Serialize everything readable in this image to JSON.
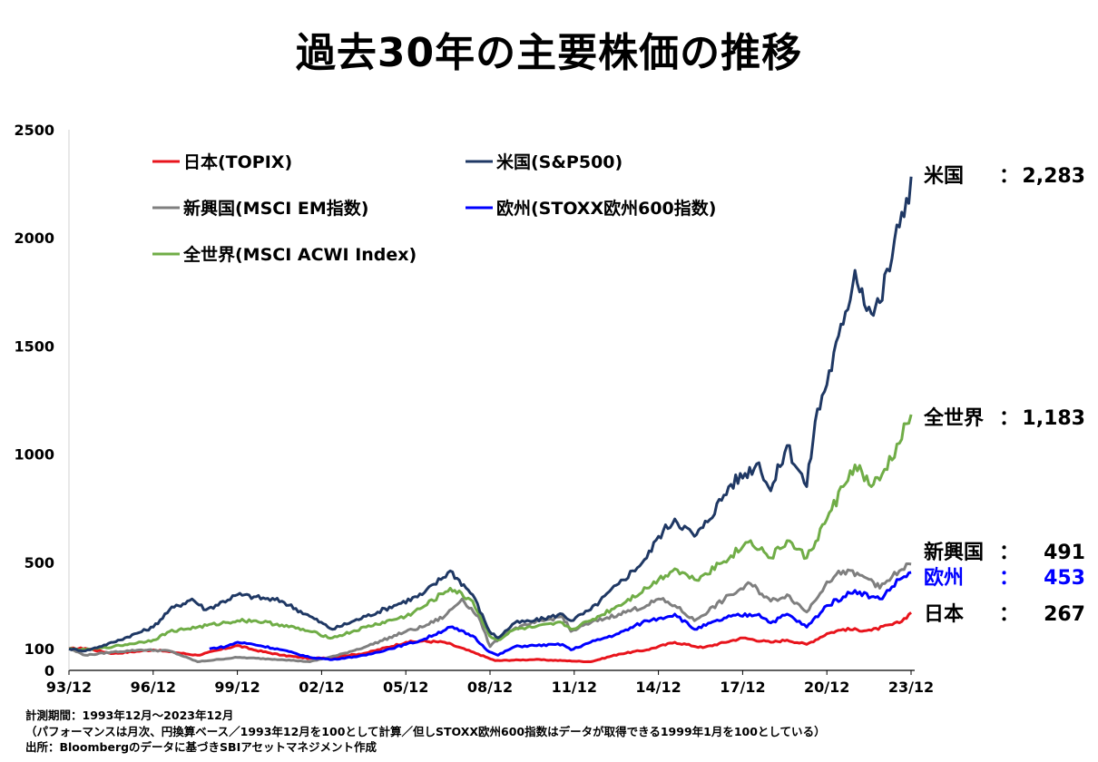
{
  "title": "過去30年の主要株価の推移",
  "chart_data": {
    "type": "line",
    "title": "過去30年の主要株価の推移",
    "x_range": [
      "1993-12",
      "2023-12"
    ],
    "ylim": [
      0,
      2500
    ],
    "y_ticks": [
      "0",
      "100",
      "500",
      "1000",
      "1500",
      "2000",
      "2500"
    ],
    "x_ticks": [
      "93/12",
      "96/12",
      "99/12",
      "02/12",
      "05/12",
      "08/12",
      "11/12",
      "14/12",
      "17/12",
      "20/12",
      "23/12"
    ],
    "legend_position": "top-left",
    "grid": false,
    "series": [
      {
        "name": "日本(TOPIX)",
        "color": "#e8141c",
        "end_label": "日本",
        "end_value": "267",
        "label_color": "#000000",
        "points": [
          [
            1993.92,
            100
          ],
          [
            1994.5,
            102
          ],
          [
            1995.5,
            78
          ],
          [
            1996.5,
            90
          ],
          [
            1996.92,
            95
          ],
          [
            1997.5,
            86
          ],
          [
            1998.5,
            70
          ],
          [
            1999.92,
            115
          ],
          [
            2000.5,
            95
          ],
          [
            2001.5,
            70
          ],
          [
            2002.5,
            55
          ],
          [
            2003.3,
            60
          ],
          [
            2004.5,
            80
          ],
          [
            2005.92,
            130
          ],
          [
            2006.5,
            135
          ],
          [
            2007.3,
            130
          ],
          [
            2008.5,
            75
          ],
          [
            2009.1,
            45
          ],
          [
            2010.5,
            50
          ],
          [
            2011.5,
            45
          ],
          [
            2012.5,
            40
          ],
          [
            2013.5,
            75
          ],
          [
            2014.5,
            95
          ],
          [
            2015.5,
            130
          ],
          [
            2016.5,
            105
          ],
          [
            2017.92,
            150
          ],
          [
            2018.92,
            130
          ],
          [
            2019.5,
            140
          ],
          [
            2020.2,
            120
          ],
          [
            2020.92,
            170
          ],
          [
            2021.5,
            190
          ],
          [
            2022.5,
            185
          ],
          [
            2023.5,
            220
          ],
          [
            2023.92,
            267
          ]
        ]
      },
      {
        "name": "米国(S&P500)",
        "color": "#1f3864",
        "end_label": "米国",
        "end_value": "2,283",
        "label_color": "#000000",
        "points": [
          [
            1993.92,
            100
          ],
          [
            1994.5,
            90
          ],
          [
            1995.5,
            130
          ],
          [
            1996.92,
            200
          ],
          [
            1997.5,
            280
          ],
          [
            1998.3,
            330
          ],
          [
            1998.8,
            280
          ],
          [
            1999.92,
            350
          ],
          [
            2000.5,
            340
          ],
          [
            2001.5,
            320
          ],
          [
            2002.5,
            250
          ],
          [
            2003.3,
            190
          ],
          [
            2004.5,
            250
          ],
          [
            2005.5,
            300
          ],
          [
            2006.5,
            350
          ],
          [
            2007.5,
            460
          ],
          [
            2008.3,
            350
          ],
          [
            2008.9,
            180
          ],
          [
            2009.2,
            150
          ],
          [
            2009.8,
            220
          ],
          [
            2010.5,
            230
          ],
          [
            2011.5,
            260
          ],
          [
            2011.8,
            230
          ],
          [
            2012.5,
            280
          ],
          [
            2013.5,
            400
          ],
          [
            2014.5,
            520
          ],
          [
            2014.92,
            620
          ],
          [
            2015.5,
            700
          ],
          [
            2016.2,
            620
          ],
          [
            2016.5,
            660
          ],
          [
            2017.5,
            860
          ],
          [
            2018.5,
            960
          ],
          [
            2018.92,
            830
          ],
          [
            2019.5,
            1040
          ],
          [
            2020.2,
            850
          ],
          [
            2020.5,
            1150
          ],
          [
            2021.5,
            1600
          ],
          [
            2021.92,
            1850
          ],
          [
            2022.5,
            1650
          ],
          [
            2022.8,
            1700
          ],
          [
            2023.5,
            2050
          ],
          [
            2023.92,
            2283
          ]
        ]
      },
      {
        "name": "新興国(MSCI EM指数)",
        "color": "#7f7f7f",
        "end_label": "新興国",
        "end_value": "491",
        "label_color": "#000000",
        "points": [
          [
            1993.92,
            100
          ],
          [
            1994.5,
            70
          ],
          [
            1995.5,
            85
          ],
          [
            1996.5,
            95
          ],
          [
            1997.5,
            90
          ],
          [
            1998.5,
            40
          ],
          [
            1999.92,
            60
          ],
          [
            2001.5,
            50
          ],
          [
            2002.5,
            40
          ],
          [
            2003.5,
            70
          ],
          [
            2004.5,
            110
          ],
          [
            2005.92,
            180
          ],
          [
            2006.5,
            200
          ],
          [
            2007.3,
            250
          ],
          [
            2007.92,
            330
          ],
          [
            2008.5,
            250
          ],
          [
            2008.92,
            110
          ],
          [
            2009.5,
            180
          ],
          [
            2010.5,
            220
          ],
          [
            2011.5,
            250
          ],
          [
            2011.8,
            180
          ],
          [
            2012.5,
            220
          ],
          [
            2013.5,
            260
          ],
          [
            2014.5,
            300
          ],
          [
            2014.92,
            330
          ],
          [
            2015.5,
            300
          ],
          [
            2016.2,
            230
          ],
          [
            2017.5,
            350
          ],
          [
            2018.2,
            400
          ],
          [
            2018.92,
            320
          ],
          [
            2019.5,
            350
          ],
          [
            2020.2,
            270
          ],
          [
            2020.92,
            410
          ],
          [
            2021.5,
            460
          ],
          [
            2022.5,
            420
          ],
          [
            2022.8,
            380
          ],
          [
            2023.5,
            460
          ],
          [
            2023.92,
            491
          ]
        ]
      },
      {
        "name": "欧州(STOXX欧州600指数)",
        "color": "#0000ff",
        "end_label": "欧州",
        "end_value": "453",
        "label_color": "#0000ff",
        "points": [
          [
            1998.92,
            100
          ],
          [
            1999.5,
            110
          ],
          [
            1999.92,
            130
          ],
          [
            2000.5,
            120
          ],
          [
            2001.5,
            95
          ],
          [
            2002.5,
            60
          ],
          [
            2003.3,
            50
          ],
          [
            2004.5,
            70
          ],
          [
            2005.92,
            120
          ],
          [
            2006.5,
            140
          ],
          [
            2007.5,
            200
          ],
          [
            2008.3,
            160
          ],
          [
            2008.9,
            85
          ],
          [
            2009.2,
            70
          ],
          [
            2009.8,
            110
          ],
          [
            2010.5,
            115
          ],
          [
            2011.5,
            120
          ],
          [
            2011.8,
            95
          ],
          [
            2012.5,
            130
          ],
          [
            2013.5,
            170
          ],
          [
            2014.5,
            230
          ],
          [
            2014.92,
            240
          ],
          [
            2015.5,
            260
          ],
          [
            2016.2,
            190
          ],
          [
            2017.5,
            250
          ],
          [
            2018.5,
            260
          ],
          [
            2018.92,
            220
          ],
          [
            2019.5,
            260
          ],
          [
            2020.2,
            200
          ],
          [
            2020.92,
            300
          ],
          [
            2021.5,
            340
          ],
          [
            2021.92,
            370
          ],
          [
            2022.5,
            340
          ],
          [
            2022.8,
            330
          ],
          [
            2023.5,
            420
          ],
          [
            2023.92,
            453
          ]
        ]
      },
      {
        "name": "全世界(MSCI ACWI Index)",
        "color": "#70ad47",
        "end_label": "全世界",
        "end_value": "1,183",
        "label_color": "#000000",
        "points": [
          [
            1993.92,
            100
          ],
          [
            1994.5,
            95
          ],
          [
            1995.5,
            110
          ],
          [
            1996.92,
            140
          ],
          [
            1997.5,
            180
          ],
          [
            1998.5,
            200
          ],
          [
            1999.92,
            230
          ],
          [
            2000.5,
            230
          ],
          [
            2001.5,
            210
          ],
          [
            2002.5,
            180
          ],
          [
            2003.3,
            150
          ],
          [
            2004.5,
            200
          ],
          [
            2005.92,
            250
          ],
          [
            2006.5,
            290
          ],
          [
            2007.5,
            380
          ],
          [
            2008.3,
            320
          ],
          [
            2008.9,
            160
          ],
          [
            2009.2,
            140
          ],
          [
            2009.8,
            190
          ],
          [
            2010.5,
            200
          ],
          [
            2011.5,
            220
          ],
          [
            2011.8,
            190
          ],
          [
            2012.5,
            230
          ],
          [
            2013.5,
            300
          ],
          [
            2014.5,
            380
          ],
          [
            2014.92,
            420
          ],
          [
            2015.5,
            470
          ],
          [
            2016.2,
            420
          ],
          [
            2016.5,
            440
          ],
          [
            2017.5,
            530
          ],
          [
            2018.2,
            600
          ],
          [
            2018.92,
            520
          ],
          [
            2019.5,
            600
          ],
          [
            2020.2,
            520
          ],
          [
            2020.92,
            700
          ],
          [
            2021.5,
            850
          ],
          [
            2021.92,
            950
          ],
          [
            2022.5,
            850
          ],
          [
            2022.8,
            880
          ],
          [
            2023.5,
            1050
          ],
          [
            2023.92,
            1183
          ]
        ]
      }
    ]
  },
  "notes": [
    "計測期間：1993年12月～2023年12月",
    "（パフォーマンスは月次、円換算ベース／1993年12月を100として計算／但しSTOXX欧州600指数はデータが取得できる1999年1月を100としている）",
    "出所：Bloombergのデータに基づきSBIアセットマネジメント作成"
  ]
}
